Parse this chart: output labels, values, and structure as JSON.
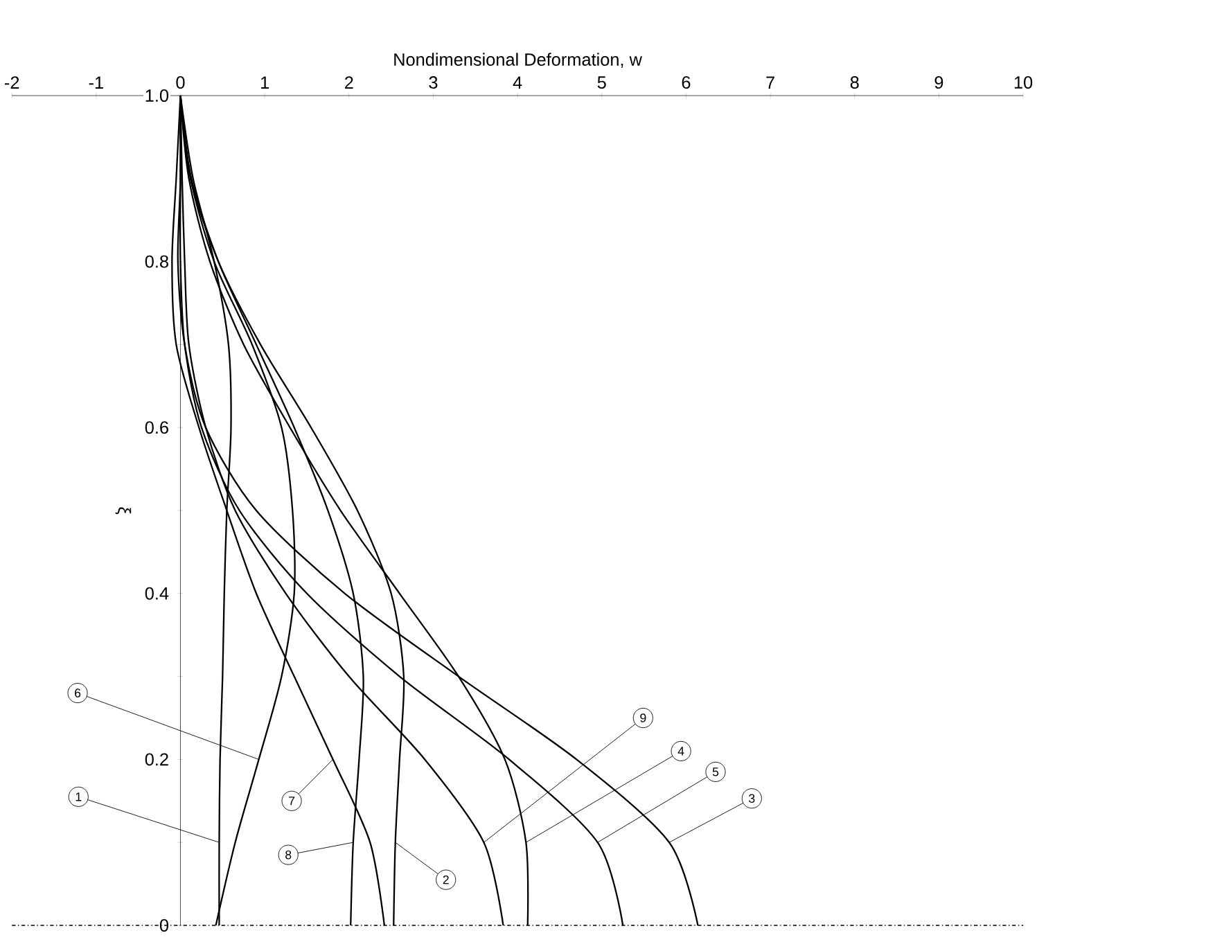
{
  "chart_data": {
    "type": "line",
    "xlabel": "Nondimensional Deformation, w",
    "ylabel": "ξ",
    "xlim": [
      -2,
      10
    ],
    "ylim": [
      0,
      1
    ],
    "xticks": [
      -2,
      -1,
      0,
      1,
      2,
      3,
      4,
      5,
      6,
      7,
      8,
      9,
      10
    ],
    "yticks": [
      0,
      {
        "value": 0.1,
        "label": null
      },
      0.2,
      {
        "value": 0.3,
        "label": null
      },
      0.4,
      {
        "value": 0.5,
        "label": null
      },
      0.6,
      {
        "value": 0.7,
        "label": null
      },
      0.8,
      {
        "value": 0.9,
        "label": null
      },
      {
        "value": 1,
        "label": "1.0"
      }
    ],
    "ref_lines": [
      {
        "axis": "y",
        "value": 0,
        "line_style": "dashdotted"
      }
    ],
    "series": [
      {
        "name": "1",
        "color": "#000000",
        "x": [
          0.46,
          0.46,
          0.47,
          0.5,
          0.52,
          0.55,
          0.6,
          0.57,
          0.4,
          0.15,
          0
        ],
        "values": [
          0,
          0.1,
          0.2,
          0.3,
          0.4,
          0.5,
          0.6,
          0.7,
          0.8,
          0.9,
          1
        ]
      },
      {
        "name": "2",
        "color": "#000000",
        "x": [
          2.53,
          2.55,
          2.6,
          2.65,
          2.5,
          2.1,
          1.55,
          0.95,
          0.45,
          0.12,
          0
        ],
        "values": [
          0,
          0.1,
          0.2,
          0.3,
          0.4,
          0.5,
          0.6,
          0.7,
          0.8,
          0.9,
          1
        ]
      },
      {
        "name": "3",
        "color": "#000000",
        "x": [
          6.14,
          5.8,
          4.7,
          3.3,
          1.95,
          0.9,
          0.3,
          0.05,
          -0.03,
          0,
          0
        ],
        "values": [
          0,
          0.1,
          0.2,
          0.3,
          0.4,
          0.5,
          0.6,
          0.7,
          0.8,
          0.9,
          1
        ]
      },
      {
        "name": "4",
        "color": "#000000",
        "x": [
          4.12,
          4.1,
          3.85,
          3.3,
          2.6,
          1.9,
          1.3,
          0.75,
          0.35,
          0.1,
          0
        ],
        "values": [
          0,
          0.1,
          0.2,
          0.3,
          0.4,
          0.5,
          0.6,
          0.7,
          0.8,
          0.9,
          1
        ]
      },
      {
        "name": "5",
        "color": "#000000",
        "x": [
          5.25,
          4.95,
          3.9,
          2.6,
          1.5,
          0.7,
          0.25,
          0.05,
          0,
          0,
          0
        ],
        "values": [
          0,
          0.1,
          0.2,
          0.3,
          0.4,
          0.5,
          0.6,
          0.7,
          0.8,
          0.9,
          1
        ]
      },
      {
        "name": "6",
        "color": "#000000",
        "x": [
          0.42,
          0.65,
          0.93,
          1.2,
          1.35,
          1.33,
          1.2,
          0.85,
          0.4,
          0.12,
          0
        ],
        "values": [
          0,
          0.1,
          0.2,
          0.3,
          0.4,
          0.5,
          0.6,
          0.7,
          0.8,
          0.9,
          1
        ]
      },
      {
        "name": "7",
        "color": "#000000",
        "x": [
          2.42,
          2.25,
          1.81,
          1.35,
          0.9,
          0.55,
          0.22,
          -0.05,
          -0.1,
          -0.05,
          0
        ],
        "values": [
          0,
          0.1,
          0.2,
          0.3,
          0.4,
          0.5,
          0.6,
          0.7,
          0.8,
          0.9,
          1
        ]
      },
      {
        "name": "8",
        "color": "#000000",
        "x": [
          2.02,
          2.05,
          2.12,
          2.17,
          2.05,
          1.75,
          1.35,
          0.9,
          0.45,
          0.13,
          0
        ],
        "values": [
          0,
          0.1,
          0.2,
          0.3,
          0.4,
          0.5,
          0.6,
          0.7,
          0.8,
          0.9,
          1
        ]
      },
      {
        "name": "9",
        "color": "#000000",
        "x": [
          3.83,
          3.6,
          2.9,
          2.0,
          1.25,
          0.65,
          0.3,
          0.1,
          0.05,
          0.02,
          0
        ],
        "values": [
          0,
          0.1,
          0.2,
          0.3,
          0.4,
          0.5,
          0.6,
          0.7,
          0.8,
          0.9,
          1
        ]
      }
    ]
  }
}
